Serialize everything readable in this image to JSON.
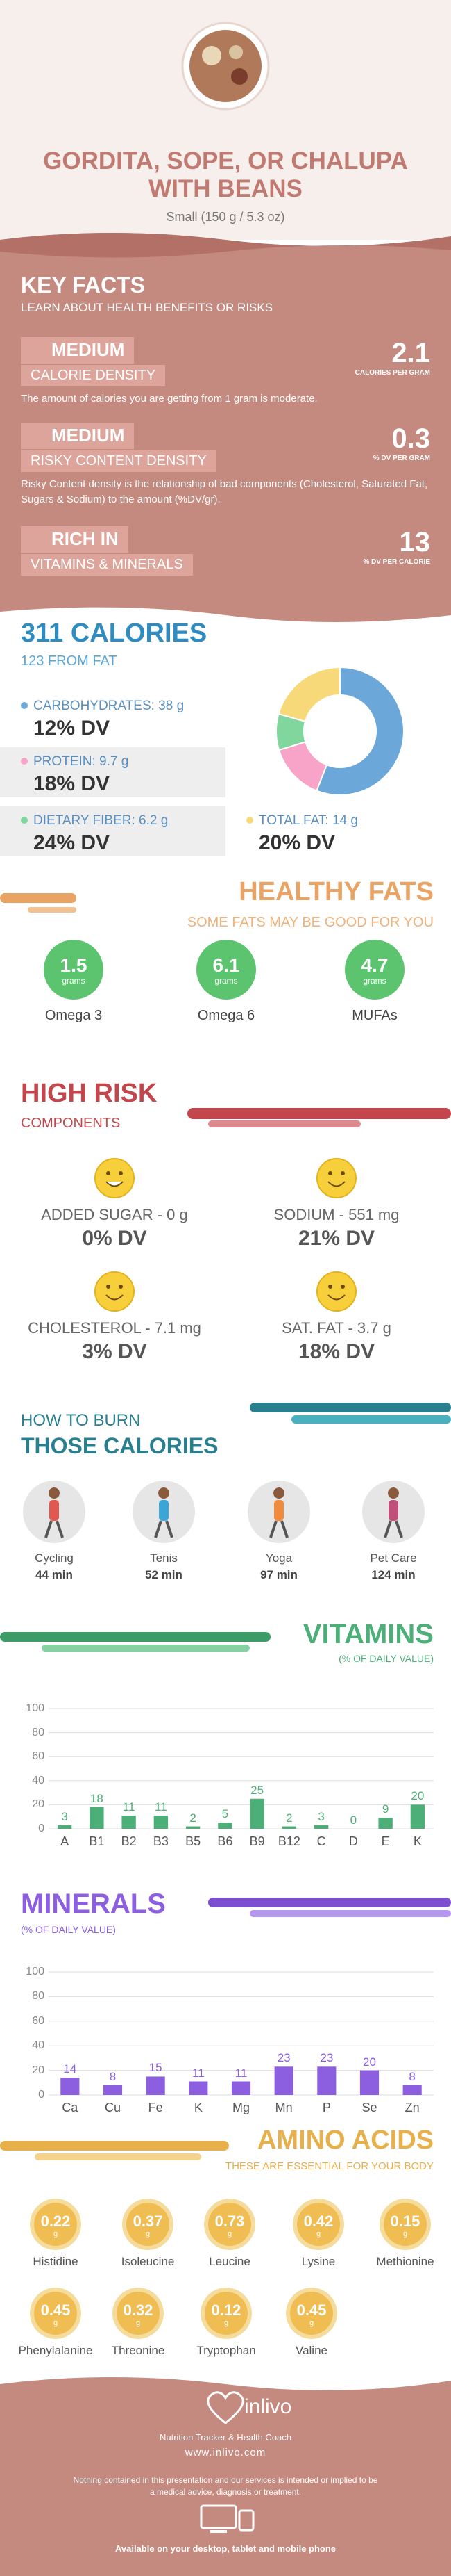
{
  "header": {
    "title": "GORDITA, SOPE, OR CHALUPA WITH BEANS",
    "subtitle": "Small (150 g / 5.3 oz)"
  },
  "key_facts": {
    "title": "KEY FACTS",
    "subtitle": "LEARN ABOUT HEALTH BENEFITS OR RISKS",
    "items": [
      {
        "level": "MEDIUM",
        "label": "CALORIE DENSITY",
        "value": 2.1,
        "unit": "CALORIES PER GRAM",
        "description": "The amount of calories you are getting from 1 gram is moderate."
      },
      {
        "level": "MEDIUM",
        "label": "RISKY CONTENT DENSITY",
        "value": 0.3,
        "unit": "% DV PER GRAM",
        "description": "Risky Content density is the relationship of bad components (Cholesterol, Saturated Fat, Sugars & Sodium) to the amount (%DV/gr)."
      },
      {
        "level": "RICH  IN",
        "label": "VITAMINS & MINERALS",
        "value": 13,
        "unit": "% DV PER CALORIE"
      }
    ]
  },
  "calories": {
    "title": "311 CALORIES",
    "subtitle": "123 FROM FAT"
  },
  "healthy_fats": {
    "title": "HEALTHY FATS",
    "subtitle": "SOME FATS MAY BE GOOD FOR YOU",
    "items": [
      {
        "value": 1.5,
        "unit": "grams",
        "name": "Omega 3"
      },
      {
        "value": 6.1,
        "unit": "grams",
        "name": "Omega 6"
      },
      {
        "value": 4.7,
        "unit": "grams",
        "name": "MUFAs"
      }
    ]
  },
  "high_risk": {
    "title": "HIGH RISK",
    "subtitle": "COMPONENTS",
    "items": [
      {
        "label": "ADDED SUGAR - 0 g",
        "dv": "0% DV"
      },
      {
        "label": "SODIUM - 551 mg",
        "dv": "21% DV"
      },
      {
        "label": "CHOLESTEROL - 7.1 mg",
        "dv": "3% DV"
      },
      {
        "label": "SAT. FAT - 3.7 g",
        "dv": "18% DV"
      }
    ]
  },
  "burn": {
    "title_line1": "HOW TO BURN",
    "title_line2": "THOSE CALORIES",
    "activities": [
      {
        "name": "Cycling",
        "time": "44 min"
      },
      {
        "name": "Tenis",
        "time": "52 min"
      },
      {
        "name": "Yoga",
        "time": "97 min"
      },
      {
        "name": "Pet Care",
        "time": "124 min"
      }
    ]
  },
  "chart_data": [
    {
      "type": "donut",
      "values": [
        38,
        9.7,
        6.2,
        14
      ],
      "value_labels": [
        "CARBOHYDRATES: 38 g",
        "PROTEIN: 9.7 g",
        "DIETARY FIBER: 6.2 g",
        "TOTAL FAT: 14 g"
      ],
      "dv_labels": [
        "12% DV",
        "18% DV",
        "24% DV",
        "20% DV"
      ],
      "colors": [
        "#6ba7d9",
        "#f7a4c8",
        "#80d69c",
        "#f8d97a"
      ]
    },
    {
      "type": "bar",
      "title": "VITAMINS",
      "subtitle": "(% OF DAILY VALUE)",
      "categories": [
        "A",
        "B1",
        "B2",
        "B3",
        "B5",
        "B6",
        "B9",
        "B12",
        "C",
        "D",
        "E",
        "K"
      ],
      "values": [
        3,
        18,
        11,
        11,
        2,
        5,
        25,
        2,
        3,
        0,
        9,
        20
      ],
      "color": "#4caf78",
      "ylim": [
        0,
        100
      ],
      "yticks": [
        0,
        20,
        40,
        60,
        80,
        100
      ],
      "grid": true
    },
    {
      "type": "bar",
      "title": "MINERALS",
      "subtitle": "(% OF DAILY VALUE)",
      "categories": [
        "Ca",
        "Cu",
        "Fe",
        "K",
        "Mg",
        "Mn",
        "P",
        "Se",
        "Zn"
      ],
      "values": [
        14,
        8,
        15,
        11,
        11,
        23,
        23,
        20,
        8
      ],
      "color": "#8c5ee0",
      "ylim": [
        0,
        100
      ],
      "yticks": [
        0,
        20,
        40,
        60,
        80,
        100
      ],
      "grid": true
    }
  ],
  "amino_acids": {
    "title": "AMINO ACIDS",
    "subtitle": "THESE ARE ESSENTIAL FOR YOUR BODY",
    "items": [
      {
        "value": 0.22,
        "unit": "g",
        "name": "Histidine"
      },
      {
        "value": 0.37,
        "unit": "g",
        "name": "Isoleucine"
      },
      {
        "value": 0.73,
        "unit": "g",
        "name": "Leucine"
      },
      {
        "value": 0.42,
        "unit": "g",
        "name": "Lysine"
      },
      {
        "value": 0.15,
        "unit": "g",
        "name": "Methionine"
      },
      {
        "value": 0.45,
        "unit": "g",
        "name": "Phenylalanine"
      },
      {
        "value": 0.32,
        "unit": "g",
        "name": "Threonine"
      },
      {
        "value": 0.12,
        "unit": "g",
        "name": "Tryptophan"
      },
      {
        "value": 0.45,
        "unit": "g",
        "name": "Valine"
      }
    ]
  },
  "footer": {
    "brand": "inlivo",
    "tagline": "Nutrition Tracker & Health Coach",
    "url": "www.inlivo.com",
    "disclaimer": "Nothing contained in this presentation and our services is intended or implied to be a medical advice, diagnosis or treatment.",
    "available": "Available on your desktop, tablet and mobile phone"
  }
}
